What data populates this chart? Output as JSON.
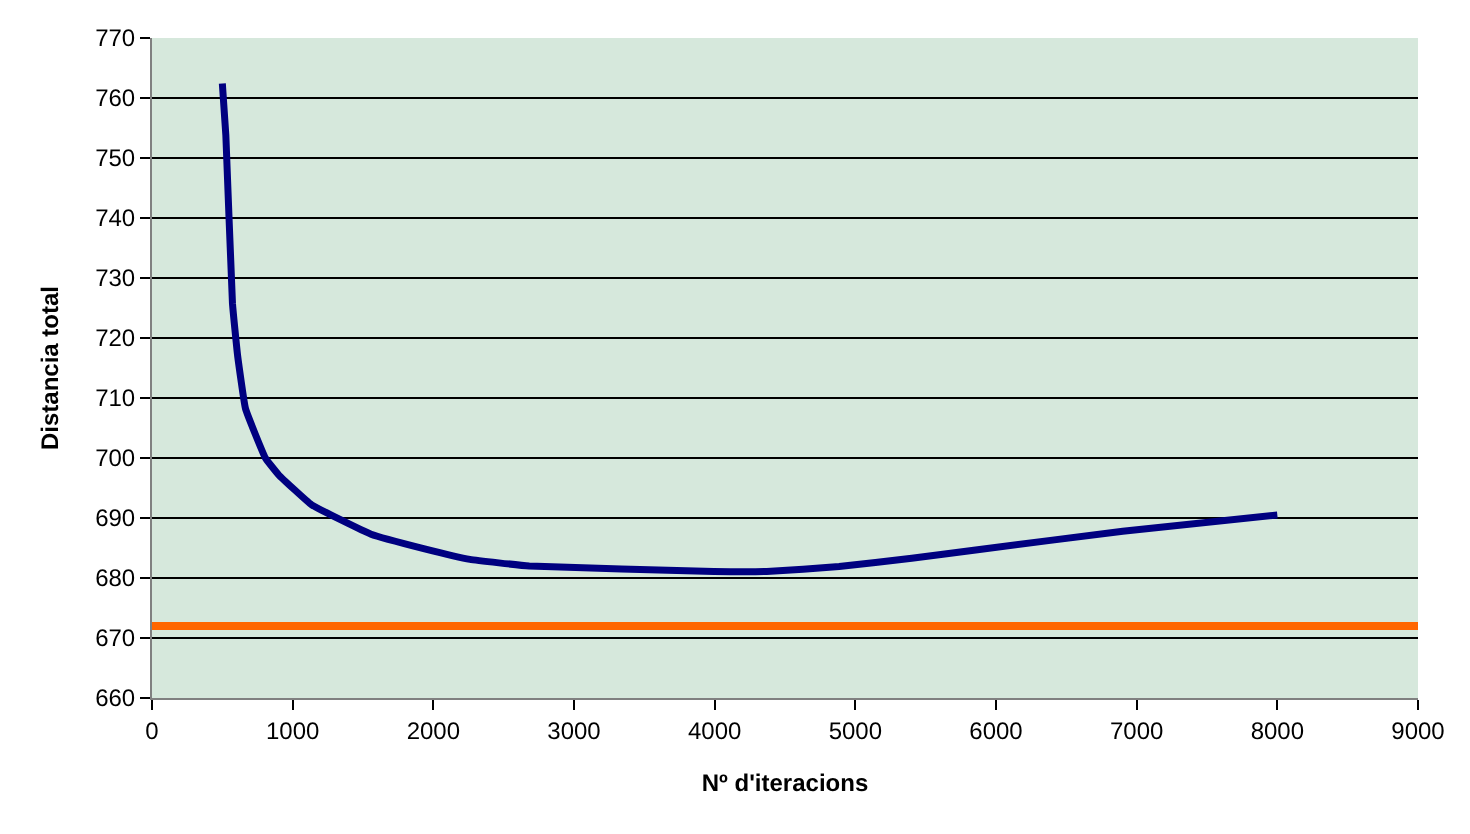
{
  "chart_data": {
    "type": "line",
    "xlabel": "Nº d'iteracions",
    "ylabel": "Distancia total",
    "x": [
      500,
      525,
      572,
      609,
      665,
      806,
      900,
      1135,
      1557,
      1931,
      2260,
      2682,
      3994,
      4370,
      4885,
      5401,
      5869,
      6901,
      8000
    ],
    "series": [
      {
        "color": "#000080",
        "values": [
          762.4,
          753.8,
          725.8,
          717,
          708.2,
          700,
          697.2,
          692.2,
          687.3,
          684.9,
          683.1,
          682.0,
          681.1,
          681.1,
          681.9,
          683.3,
          684.7,
          687.8,
          690.5
        ]
      }
    ],
    "xlim": [
      0,
      9000
    ],
    "xticks": [
      0,
      1000,
      2000,
      3000,
      4000,
      5000,
      6000,
      7000,
      8000,
      9000
    ],
    "ylim": [
      660,
      770
    ],
    "yticks": [
      660,
      670,
      680,
      690,
      700,
      710,
      720,
      730,
      740,
      750,
      760,
      770
    ],
    "ref_lines": [
      {
        "axis": "y",
        "value": 672,
        "color": "#ff6600"
      }
    ],
    "grid": "y",
    "marker": "none",
    "line_style": "solid"
  }
}
